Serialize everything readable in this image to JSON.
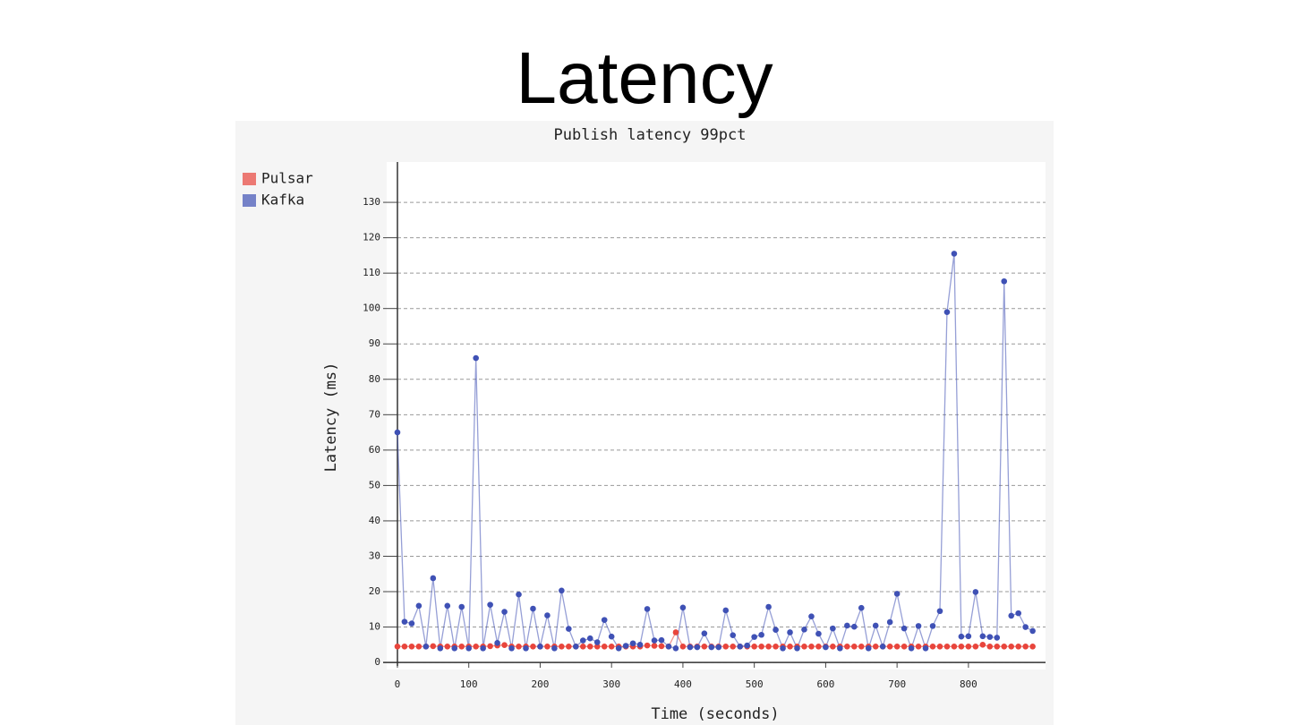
{
  "slide_title": "Latency",
  "chart_data": {
    "type": "line",
    "title": "Publish latency 99pct",
    "x_label": "Time (seconds)",
    "y_label": "Latency (ms)",
    "x": [
      0,
      10,
      20,
      30,
      40,
      50,
      60,
      70,
      80,
      90,
      100,
      110,
      120,
      130,
      140,
      150,
      160,
      170,
      180,
      190,
      200,
      210,
      220,
      230,
      240,
      250,
      260,
      270,
      280,
      290,
      300,
      310,
      320,
      330,
      340,
      350,
      360,
      370,
      380,
      390,
      400,
      410,
      420,
      430,
      440,
      450,
      460,
      470,
      480,
      490,
      500,
      510,
      520,
      530,
      540,
      550,
      560,
      570,
      580,
      590,
      600,
      610,
      620,
      630,
      640,
      650,
      660,
      670,
      680,
      690,
      700,
      710,
      720,
      730,
      740,
      750,
      760,
      770,
      780,
      790,
      800,
      810,
      820,
      830,
      840,
      850,
      860,
      870,
      880,
      890
    ],
    "series": [
      {
        "name": "Pulsar",
        "color": "#e8453c",
        "values": [
          4.5,
          4.5,
          4.5,
          4.5,
          4.5,
          4.6,
          4.5,
          4.5,
          4.5,
          4.5,
          4.5,
          4.5,
          4.5,
          4.6,
          4.8,
          4.9,
          4.5,
          4.5,
          4.5,
          4.5,
          4.5,
          4.5,
          4.5,
          4.5,
          4.5,
          4.5,
          4.5,
          4.5,
          4.5,
          4.5,
          4.5,
          4.5,
          4.5,
          4.5,
          4.5,
          4.8,
          4.7,
          4.6,
          4.5,
          8.5,
          4.5,
          4.5,
          4.5,
          4.5,
          4.5,
          4.5,
          4.5,
          4.5,
          4.5,
          4.5,
          4.5,
          4.5,
          4.5,
          4.5,
          4.5,
          4.5,
          4.5,
          4.5,
          4.5,
          4.5,
          4.5,
          4.5,
          4.5,
          4.5,
          4.5,
          4.5,
          4.5,
          4.5,
          4.5,
          4.5,
          4.5,
          4.5,
          4.5,
          4.5,
          4.5,
          4.5,
          4.5,
          4.5,
          4.5,
          4.5,
          4.5,
          4.5,
          5.0,
          4.5,
          4.5,
          4.5,
          4.5,
          4.5,
          4.5,
          4.5
        ]
      },
      {
        "name": "Kafka",
        "color": "#3f51b5",
        "values": [
          65,
          11.5,
          11,
          16,
          4.5,
          23.8,
          4,
          16,
          4,
          15.7,
          4,
          86,
          4,
          16.3,
          5.5,
          14.3,
          4,
          19.2,
          4,
          15.2,
          4.5,
          13.3,
          4,
          20.3,
          9.5,
          4.5,
          6.2,
          6.8,
          5.7,
          12,
          7.3,
          4,
          4.7,
          5.4,
          5,
          15.1,
          6.2,
          6.3,
          4.5,
          4,
          15.5,
          4.3,
          4.3,
          8.2,
          4.3,
          4.3,
          14.7,
          7.7,
          4.5,
          4.8,
          7.2,
          7.8,
          15.7,
          9.2,
          4,
          8.5,
          4,
          9.3,
          13,
          8.1,
          4.3,
          9.6,
          4,
          10.4,
          10.1,
          15.4,
          4,
          10.4,
          4.5,
          11.4,
          19.4,
          9.6,
          4,
          10.3,
          4,
          10.3,
          14.5,
          99,
          115.5,
          7.3,
          7.4,
          19.9,
          7.4,
          7.2,
          7,
          107.7,
          13.2,
          13.9,
          10,
          8.9
        ]
      }
    ],
    "xlim": [
      -15,
      908
    ],
    "ylim": [
      -2,
      141.4
    ],
    "xticks": [
      0,
      100,
      200,
      300,
      400,
      500,
      600,
      700,
      800
    ],
    "yticks": [
      0,
      10,
      20,
      30,
      40,
      50,
      60,
      70,
      80,
      90,
      100,
      110,
      120,
      130
    ],
    "grid": true,
    "legend": "upper-left"
  }
}
